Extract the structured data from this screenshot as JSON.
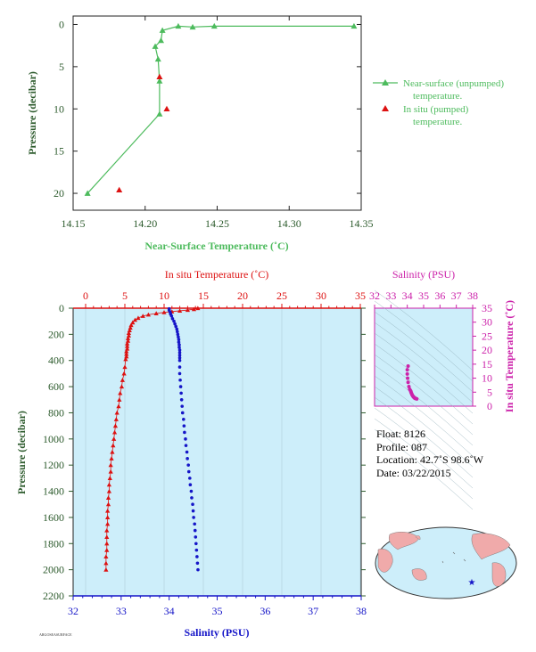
{
  "colors": {
    "near_surface": "#4dbb5d",
    "in_situ": "#dd1111",
    "salinity": "#1515c8",
    "ts_magenta": "#cc22aa",
    "pressure_axis": "#2d5b2d",
    "panel_bg": "#cdeefa"
  },
  "top_chart": {
    "xlabel": "Near-Surface Temperature (˚C)",
    "ylabel": "Pressure (decibar)",
    "x_ticks": [
      "14.15",
      "14.20",
      "14.25",
      "14.30",
      "14.35"
    ],
    "y_ticks": [
      "0",
      "5",
      "10",
      "15",
      "20"
    ],
    "legend": {
      "near_surface_line1": "Near-surface (unpumped)",
      "near_surface_line2": "temperature.",
      "in_situ_line1": "In situ (pumped)",
      "in_situ_line2": "temperature."
    }
  },
  "main_chart": {
    "top_xlabel": "In situ Temperature (˚C)",
    "bottom_xlabel": "Salinity (PSU)",
    "ylabel": "Pressure (decibar)",
    "temp_ticks": [
      "0",
      "5",
      "10",
      "15",
      "20",
      "25",
      "30",
      "35"
    ],
    "sal_ticks": [
      "32",
      "33",
      "34",
      "35",
      "36",
      "37",
      "38"
    ],
    "p_ticks": [
      "0",
      "200",
      "400",
      "600",
      "800",
      "1000",
      "1200",
      "1400",
      "1600",
      "1800",
      "2000",
      "2200"
    ]
  },
  "ts_chart": {
    "xlabel": "Salinity (PSU)",
    "ylabel": "In situ Temperature (˚C)",
    "sal_ticks": [
      "32",
      "33",
      "34",
      "35",
      "36",
      "37",
      "38"
    ],
    "temp_ticks": [
      "0",
      "5",
      "10",
      "15",
      "20",
      "25",
      "30",
      "35"
    ]
  },
  "info": {
    "float": "Float:  8126",
    "profile": "Profile:  087",
    "location": "Location:  42.7˚S  98.6˚W",
    "date": "Date:  03/22/2015"
  },
  "footer": {
    "small_text": "ARGOSEASURFACE"
  },
  "chart_data": [
    {
      "type": "line",
      "title": "",
      "xlabel": "Near-Surface Temperature (˚C)",
      "ylabel": "Pressure (decibar)",
      "xlim": [
        14.15,
        14.35
      ],
      "ylim": [
        22,
        -1
      ],
      "series": [
        {
          "name": "Near-surface (unpumped) temperature.",
          "points": [
            [
              14.345,
              0.2
            ],
            [
              14.248,
              0.2
            ],
            [
              14.233,
              0.3
            ],
            [
              14.223,
              0.2
            ],
            [
              14.212,
              0.7
            ],
            [
              14.211,
              1.9
            ],
            [
              14.207,
              2.6
            ],
            [
              14.209,
              4.1
            ],
            [
              14.21,
              6.7
            ],
            [
              14.21,
              10.6
            ],
            [
              14.16,
              20.0
            ]
          ]
        },
        {
          "name": "In situ (pumped) temperature.",
          "points": [
            [
              14.21,
              6.2
            ],
            [
              14.215,
              10.0
            ],
            [
              14.182,
              19.6
            ]
          ]
        }
      ]
    },
    {
      "type": "scatter",
      "title": "",
      "xlabel": "Salinity (PSU)",
      "x2label": "In situ Temperature (˚C)",
      "ylabel": "Pressure (decibar)",
      "ylim": [
        2200,
        0
      ],
      "temperature_xlim": [
        0,
        35
      ],
      "salinity_xlim": [
        32,
        38
      ],
      "series": [
        {
          "name": "In situ Temperature (˚C)",
          "points": [
            [
              14.3,
              0
            ],
            [
              13.8,
              8
            ],
            [
              13.0,
              14
            ],
            [
              12.0,
              20
            ],
            [
              11.0,
              26
            ],
            [
              10.0,
              32
            ],
            [
              9.0,
              40
            ],
            [
              8.0,
              50
            ],
            [
              7.3,
              60
            ],
            [
              6.7,
              75
            ],
            [
              6.3,
              90
            ],
            [
              6.0,
              110
            ],
            [
              5.8,
              130
            ],
            [
              5.7,
              150
            ],
            [
              5.6,
              170
            ],
            [
              5.5,
              190
            ],
            [
              5.5,
              210
            ],
            [
              5.4,
              230
            ],
            [
              5.4,
              250
            ],
            [
              5.3,
              270
            ],
            [
              5.3,
              290
            ],
            [
              5.3,
              310
            ],
            [
              5.2,
              330
            ],
            [
              5.2,
              350
            ],
            [
              5.2,
              370
            ],
            [
              5.1,
              390
            ],
            [
              5.0,
              450
            ],
            [
              4.9,
              500
            ],
            [
              4.7,
              550
            ],
            [
              4.6,
              600
            ],
            [
              4.4,
              650
            ],
            [
              4.3,
              700
            ],
            [
              4.2,
              750
            ],
            [
              4.0,
              800
            ],
            [
              3.9,
              850
            ],
            [
              3.8,
              900
            ],
            [
              3.7,
              950
            ],
            [
              3.6,
              1000
            ],
            [
              3.5,
              1050
            ],
            [
              3.4,
              1100
            ],
            [
              3.3,
              1150
            ],
            [
              3.2,
              1200
            ],
            [
              3.2,
              1250
            ],
            [
              3.1,
              1300
            ],
            [
              3.0,
              1350
            ],
            [
              3.0,
              1400
            ],
            [
              2.9,
              1450
            ],
            [
              2.9,
              1500
            ],
            [
              2.8,
              1550
            ],
            [
              2.8,
              1600
            ],
            [
              2.8,
              1650
            ],
            [
              2.7,
              1700
            ],
            [
              2.7,
              1750
            ],
            [
              2.7,
              1800
            ],
            [
              2.7,
              1850
            ],
            [
              2.6,
              1900
            ],
            [
              2.6,
              1950
            ],
            [
              2.6,
              2000
            ]
          ]
        },
        {
          "name": "Salinity (PSU)",
          "points": [
            [
              34.0,
              5
            ],
            [
              34.0,
              15
            ],
            [
              34.02,
              30
            ],
            [
              34.03,
              45
            ],
            [
              34.05,
              60
            ],
            [
              34.07,
              80
            ],
            [
              34.1,
              100
            ],
            [
              34.12,
              120
            ],
            [
              34.14,
              140
            ],
            [
              34.16,
              160
            ],
            [
              34.17,
              180
            ],
            [
              34.18,
              200
            ],
            [
              34.19,
              220
            ],
            [
              34.2,
              240
            ],
            [
              34.2,
              260
            ],
            [
              34.21,
              280
            ],
            [
              34.21,
              300
            ],
            [
              34.22,
              320
            ],
            [
              34.22,
              340
            ],
            [
              34.22,
              360
            ],
            [
              34.22,
              380
            ],
            [
              34.22,
              400
            ],
            [
              34.22,
              450
            ],
            [
              34.22,
              500
            ],
            [
              34.23,
              550
            ],
            [
              34.24,
              600
            ],
            [
              34.25,
              650
            ],
            [
              34.26,
              700
            ],
            [
              34.27,
              750
            ],
            [
              34.28,
              800
            ],
            [
              34.3,
              850
            ],
            [
              34.31,
              900
            ],
            [
              34.32,
              950
            ],
            [
              34.34,
              1000
            ],
            [
              34.35,
              1050
            ],
            [
              34.37,
              1100
            ],
            [
              34.38,
              1150
            ],
            [
              34.4,
              1200
            ],
            [
              34.41,
              1250
            ],
            [
              34.43,
              1300
            ],
            [
              34.44,
              1350
            ],
            [
              34.46,
              1400
            ],
            [
              34.47,
              1450
            ],
            [
              34.49,
              1500
            ],
            [
              34.5,
              1550
            ],
            [
              34.51,
              1600
            ],
            [
              34.53,
              1650
            ],
            [
              34.54,
              1700
            ],
            [
              34.55,
              1750
            ],
            [
              34.56,
              1800
            ],
            [
              34.57,
              1850
            ],
            [
              34.58,
              1900
            ],
            [
              34.59,
              1950
            ],
            [
              34.6,
              2000
            ]
          ]
        }
      ]
    },
    {
      "type": "scatter",
      "title": "",
      "xlabel": "Salinity (PSU)",
      "ylabel": "In situ Temperature (˚C)",
      "xlim": [
        32,
        38
      ],
      "ylim": [
        0,
        35
      ],
      "series": [
        {
          "name": "T-S",
          "points": [
            [
              34.05,
              14.3
            ],
            [
              34.0,
              13.0
            ],
            [
              34.0,
              11.5
            ],
            [
              34.02,
              10.0
            ],
            [
              34.05,
              8.5
            ],
            [
              34.1,
              7.0
            ],
            [
              34.15,
              6.0
            ],
            [
              34.2,
              5.5
            ],
            [
              34.22,
              5.2
            ],
            [
              34.24,
              4.8
            ],
            [
              34.27,
              4.4
            ],
            [
              34.3,
              4.0
            ],
            [
              34.34,
              3.6
            ],
            [
              34.38,
              3.3
            ],
            [
              34.43,
              3.0
            ],
            [
              34.48,
              2.8
            ],
            [
              34.53,
              2.7
            ],
            [
              34.58,
              2.6
            ]
          ]
        }
      ]
    }
  ]
}
